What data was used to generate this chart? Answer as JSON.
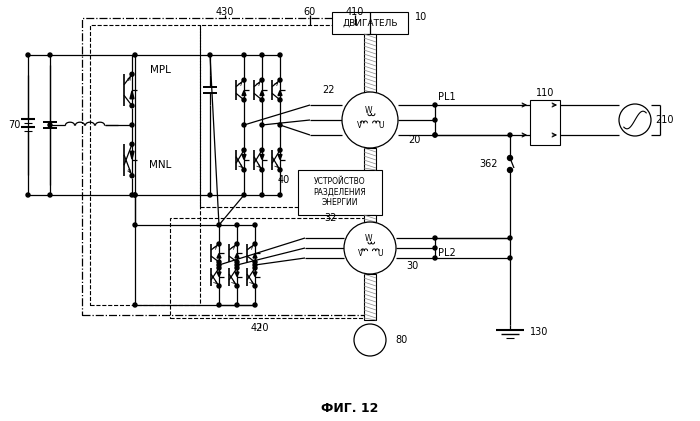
{
  "title": "ФИГ. 12",
  "bg_color": "#ffffff",
  "line_color": "#000000",
  "label_430": "430",
  "label_60": "60",
  "label_410": "410",
  "label_70": "70",
  "label_MPL": "MPL",
  "label_MNL": "MNL",
  "label_10": "10",
  "label_22": "22",
  "label_20": "20",
  "label_32": "32",
  "label_30": "30",
  "label_40": "40",
  "label_80": "80",
  "label_110": "110",
  "label_130": "130",
  "label_210": "210",
  "label_362": "362",
  "label_PL1": "PL1",
  "label_PL2": "PL2",
  "label_420": "420",
  "label_engine": "ДВИГАТЕЛЬ",
  "label_device": "УСТРОЙСТВО\nРАЗДЕЛЕНИЯ\nЭНЕРГИИ",
  "figsize": [
    7.0,
    4.21
  ],
  "dpi": 100
}
